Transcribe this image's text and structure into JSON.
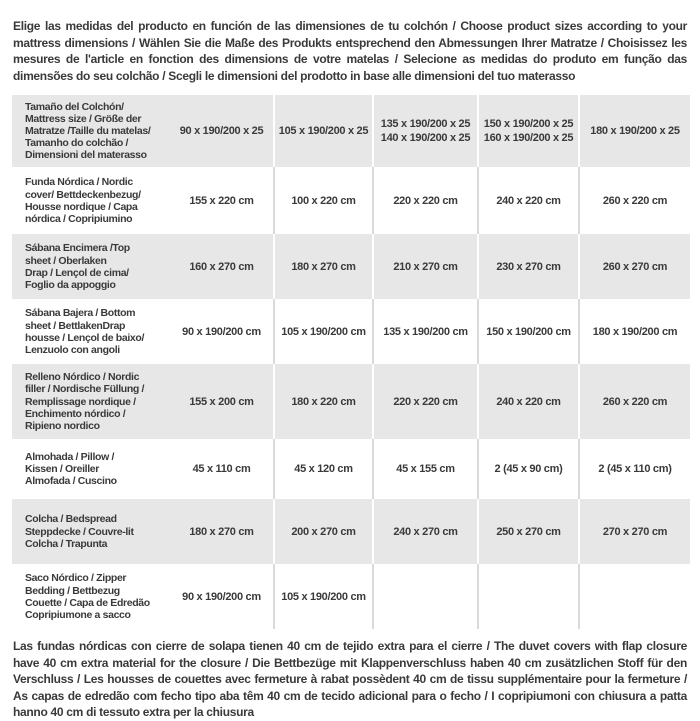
{
  "header": {
    "text": "Elige las medidas del producto en función de las dimensiones de tu colchón / Choose product sizes according to your mattress dimensions / Wählen Sie die Maße des Produkts entsprechend den Abmessungen Ihrer Matratze / Choisissez les mesures de l'article en fonction des dimensions de votre matelas / Selecione as medidas do produto em função das dimensões do seu colchão / Scegli le dimensioni del prodotto in base alle dimensioni del tuo materasso"
  },
  "table": {
    "rows": [
      {
        "label": "Tamaño del Colchón/\nMattress size / Größe der\nMatratze /Taille du matelas/\nTamanho do colchão /\nDimensioni del materasso",
        "values": [
          "90 x 190/200 x 25",
          "105 x 190/200 x 25",
          "135 x 190/200 x 25\n140 x 190/200 x 25",
          "150 x 190/200 x 25\n160 x 190/200 x 25",
          "180 x 190/200 x 25"
        ]
      },
      {
        "label": "Funda Nórdica /  Nordic\ncover/ Bettdeckenbezug/\nHousse nordique  / Capa\nnórdica / Copripiumino",
        "values": [
          "155 x 220 cm",
          "100 x 220 cm",
          "220 x 220 cm",
          "240 x 220 cm",
          "260 x 220 cm"
        ]
      },
      {
        "label": "Sábana Encimera /Top\nsheet / Oberlaken\nDrap / Lençol de cima/\nFoglio da appoggio",
        "values": [
          "160 x 270 cm",
          "180 x 270 cm",
          "210 x 270 cm",
          "230 x 270 cm",
          "260 x 270 cm"
        ]
      },
      {
        "label": "Sábana Bajera / Bottom\nsheet / BettlakenDrap\nhousse / Lençol de baixo/\nLenzuolo con angoli",
        "values": [
          "90 x 190/200 cm",
          "105 x 190/200 cm",
          "135 x 190/200 cm",
          "150 x 190/200 cm",
          "180 x 190/200 cm"
        ]
      },
      {
        "label": "Relleno Nórdico / Nordic\nfiller / Nordische Füllung /\nRemplissage nordique /\nEnchimento nórdico /\nRipieno nordico",
        "values": [
          "155 x 200 cm",
          "180 x 220 cm",
          "220 x 220 cm",
          "240 x 220 cm",
          "260 x 220 cm"
        ]
      },
      {
        "label": "Almohada  / Pillow /\nKissen / Oreiller\nAlmofada / Cuscino",
        "values": [
          "45 x 110 cm",
          "45 x 120 cm",
          "45 x 155 cm",
          "2 (45 x 90 cm)",
          "2 (45 x 110 cm)"
        ]
      },
      {
        "label": "Colcha / Bedspread\nSteppdecke / Couvre-lit\nColcha / Trapunta",
        "values": [
          "180 x 270 cm",
          "200 x 270 cm",
          "240 x 270 cm",
          "250 x 270 cm",
          "270 x 270 cm"
        ]
      },
      {
        "label": "Saco Nórdico / Zipper\nBedding / Bettbezug\nCouette  / Capa de Edredão\nCopripiumone a sacco",
        "values": [
          "90 x 190/200 cm",
          "105 x 190/200 cm",
          "",
          "",
          ""
        ]
      }
    ]
  },
  "footer": {
    "text": "Las fundas nórdicas con cierre de solapa tienen 40 cm de tejido extra para el cierre  /  The duvet covers with flap closure have 40 cm extra material for the closure / Die Bettbezüge mit Klappenverschluss haben 40 cm zusätzlichen Stoff für den Verschluss / Les housses de couettes avec fermeture à rabat possèdent 40 cm de tissu supplémentaire pour la fermeture / As capas de edredão com fecho tipo aba têm 40 cm de tecido adicional para o fecho / I copripiumoni con chiusura a patta hanno 40 cm di tessuto extra per la chiusura"
  },
  "colors": {
    "row_stripe": "#e7e7e7",
    "divider_on_white": "#d9d9d9",
    "divider_on_grey": "#ffffff",
    "text": "#3a3a3a",
    "background": "#ffffff"
  }
}
